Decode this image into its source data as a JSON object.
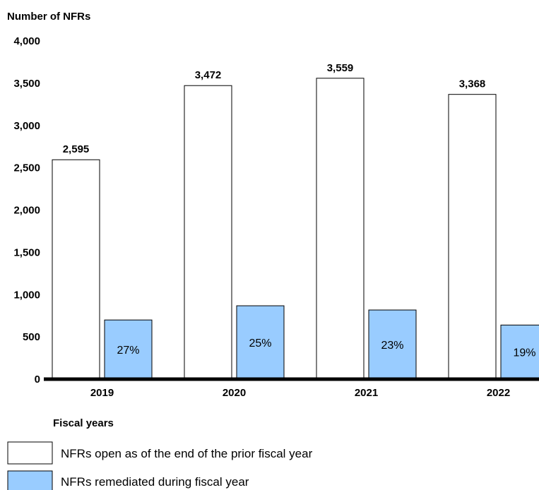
{
  "chart_data": {
    "type": "bar",
    "ylabel": "Number of NFRs",
    "xlabel": "Fiscal years",
    "categories": [
      "2019",
      "2020",
      "2021",
      "2022"
    ],
    "ylim": [
      0,
      4000
    ],
    "yticks": [
      0,
      500,
      1000,
      1500,
      2000,
      2500,
      3000,
      3500,
      4000
    ],
    "ytick_labels": [
      "0",
      "500",
      "1,000",
      "1,500",
      "2,000",
      "2,500",
      "3,000",
      "3,500",
      "4,000"
    ],
    "grid": false,
    "legend_position": "bottom-left",
    "series": [
      {
        "name": "NFRs open as of the end of the prior fiscal year",
        "color": "#ffffff",
        "values": [
          2595,
          3472,
          3559,
          3368
        ],
        "data_labels": [
          "2,595",
          "3,472",
          "3,559",
          "3,368"
        ]
      },
      {
        "name": "NFRs remediated during fiscal year",
        "color": "#99ccff",
        "values": [
          700,
          868,
          818,
          640
        ],
        "data_labels": [
          "27%",
          "25%",
          "23%",
          "19%"
        ]
      }
    ]
  }
}
